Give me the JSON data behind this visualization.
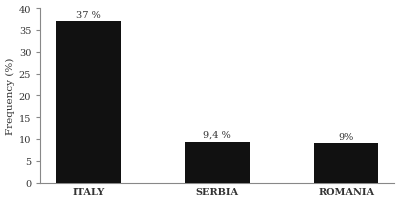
{
  "categories": [
    "ITALY",
    "SERBIA",
    "ROMANIA"
  ],
  "values": [
    37,
    9.4,
    9
  ],
  "labels": [
    "37 %",
    "9,4 %",
    "9%"
  ],
  "bar_color": "#111111",
  "ylabel": "Frequency (%)",
  "ylim": [
    0,
    40
  ],
  "yticks": [
    0,
    5,
    10,
    15,
    20,
    25,
    30,
    35,
    40
  ],
  "background_color": "#ffffff",
  "label_fontsize": 7.0,
  "axis_label_fontsize": 7.5,
  "tick_fontsize": 7.0,
  "bar_width": 0.5
}
